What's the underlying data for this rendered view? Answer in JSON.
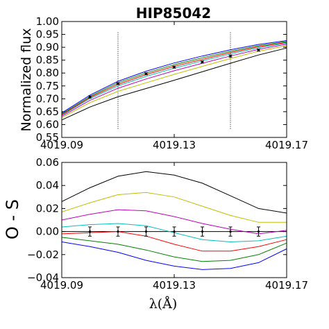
{
  "chart_data": [
    {
      "type": "line",
      "title": "HIP85042",
      "ylabel": "Normalized flux",
      "xlabel": "",
      "xlim": [
        4019.09,
        4019.17
      ],
      "ylim": [
        0.55,
        1.0
      ],
      "x_ticks": [
        "4019.09",
        "4019.13",
        "4019.17"
      ],
      "y_ticks": [
        "0.55",
        "0.60",
        "0.65",
        "0.70",
        "0.75",
        "0.80",
        "0.85",
        "0.90",
        "0.95",
        "1.00"
      ],
      "vlines": [
        4019.11,
        4019.15
      ],
      "x": [
        4019.09,
        4019.1,
        4019.11,
        4019.12,
        4019.13,
        4019.14,
        4019.15,
        4019.16,
        4019.17
      ],
      "series": [
        {
          "color": "#000000",
          "values": [
            0.618,
            0.668,
            0.708,
            0.74,
            0.772,
            0.805,
            0.838,
            0.87,
            0.897
          ]
        },
        {
          "color": "#bfbf00",
          "values": [
            0.627,
            0.685,
            0.729,
            0.762,
            0.795,
            0.826,
            0.856,
            0.885,
            0.906
          ]
        },
        {
          "color": "#bf00bf",
          "values": [
            0.632,
            0.694,
            0.741,
            0.777,
            0.809,
            0.838,
            0.866,
            0.892,
            0.912
          ]
        },
        {
          "color": "#00bfbf",
          "values": [
            0.636,
            0.701,
            0.75,
            0.787,
            0.819,
            0.847,
            0.874,
            0.898,
            0.916
          ]
        },
        {
          "color": "#ff0000",
          "values": [
            0.638,
            0.705,
            0.756,
            0.794,
            0.826,
            0.853,
            0.879,
            0.902,
            0.919
          ]
        },
        {
          "color": "#008000",
          "values": [
            0.641,
            0.709,
            0.762,
            0.8,
            0.832,
            0.859,
            0.884,
            0.906,
            0.922
          ]
        },
        {
          "color": "#0000ff",
          "values": [
            0.645,
            0.714,
            0.768,
            0.807,
            0.839,
            0.866,
            0.89,
            0.911,
            0.926
          ]
        }
      ],
      "observed": {
        "x": [
          4019.1,
          4019.11,
          4019.12,
          4019.13,
          4019.14,
          4019.15,
          4019.16
        ],
        "y": [
          0.707,
          0.759,
          0.797,
          0.823,
          0.843,
          0.866,
          0.889
        ],
        "err": [
          0.004,
          0.004,
          0.004,
          0.004,
          0.004,
          0.004,
          0.004
        ]
      }
    },
    {
      "type": "line",
      "title": "",
      "ylabel": "O - S",
      "xlabel": "λ(Å)",
      "xlim": [
        4019.09,
        4019.17
      ],
      "ylim": [
        -0.04,
        0.06
      ],
      "x_ticks": [
        "4019.09",
        "4019.13",
        "4019.17"
      ],
      "y_ticks": [
        "−0.04",
        "−0.02",
        "0.00",
        "0.02",
        "0.04",
        "0.06"
      ],
      "hline": 0.0,
      "x": [
        4019.09,
        4019.1,
        4019.11,
        4019.12,
        4019.13,
        4019.14,
        4019.15,
        4019.16,
        4019.17
      ],
      "series": [
        {
          "color": "#000000",
          "values": [
            0.026,
            0.038,
            0.048,
            0.052,
            0.049,
            0.042,
            0.031,
            0.02,
            0.016
          ]
        },
        {
          "color": "#bfbf00",
          "values": [
            0.017,
            0.025,
            0.032,
            0.034,
            0.03,
            0.022,
            0.014,
            0.008,
            0.008
          ]
        },
        {
          "color": "#bf00bf",
          "values": [
            0.01,
            0.015,
            0.019,
            0.018,
            0.013,
            0.007,
            0.002,
            -0.002,
            0.001
          ]
        },
        {
          "color": "#00bfbf",
          "values": [
            0.004,
            0.006,
            0.007,
            0.005,
            -0.001,
            -0.007,
            -0.009,
            -0.008,
            -0.004
          ]
        },
        {
          "color": "#ff0000",
          "values": [
            -0.002,
            -0.001,
            0.0,
            -0.004,
            -0.011,
            -0.017,
            -0.017,
            -0.013,
            -0.007
          ]
        },
        {
          "color": "#008000",
          "values": [
            -0.005,
            -0.008,
            -0.011,
            -0.016,
            -0.022,
            -0.026,
            -0.025,
            -0.02,
            -0.01
          ]
        },
        {
          "color": "#0000ff",
          "values": [
            -0.009,
            -0.013,
            -0.018,
            -0.025,
            -0.03,
            -0.033,
            -0.032,
            -0.027,
            -0.015
          ]
        }
      ],
      "observed": {
        "x": [
          4019.1,
          4019.11,
          4019.12,
          4019.13,
          4019.14,
          4019.15,
          4019.16
        ],
        "y": [
          0.0,
          0.0,
          0.0,
          0.0,
          0.0,
          0.0,
          0.0
        ],
        "err": [
          0.004,
          0.004,
          0.004,
          0.004,
          0.004,
          0.004,
          0.004
        ]
      }
    }
  ]
}
